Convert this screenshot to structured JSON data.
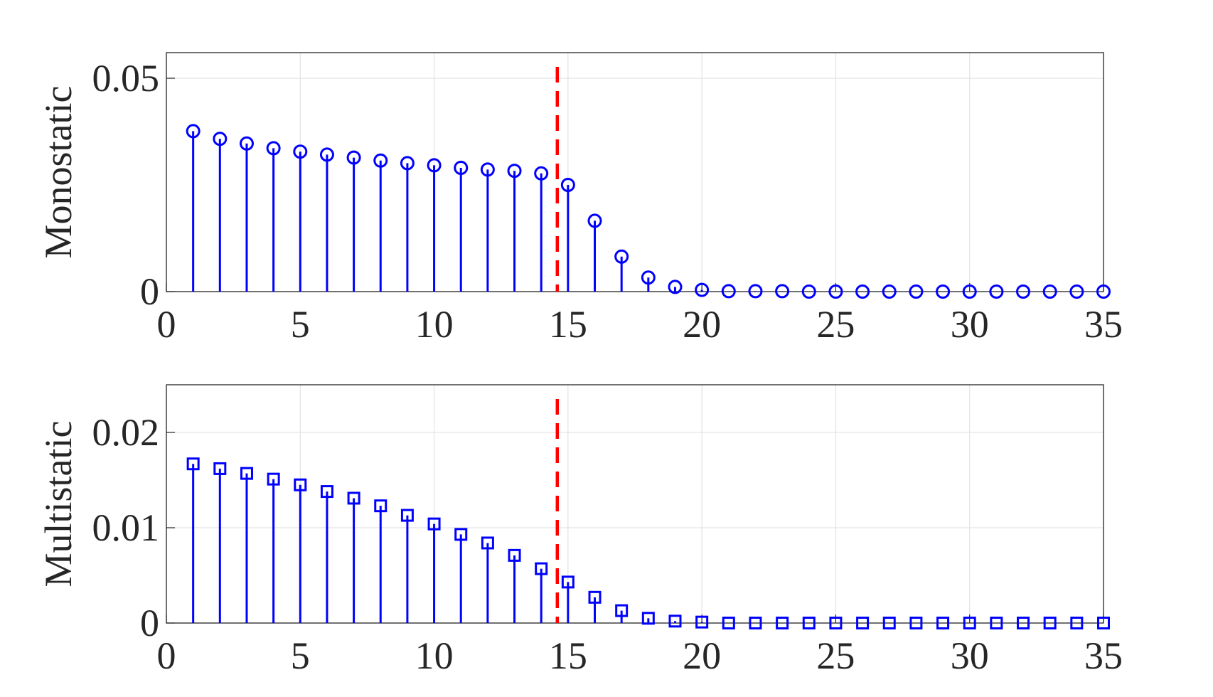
{
  "chart_data": [
    {
      "type": "stem",
      "ylabel": "Monostatic",
      "marker": "circle",
      "color": "#0000ff",
      "grid": true,
      "x": [
        1,
        2,
        3,
        4,
        5,
        6,
        7,
        8,
        9,
        10,
        11,
        12,
        13,
        14,
        15,
        16,
        17,
        18,
        19,
        20,
        21,
        22,
        23,
        24,
        25,
        26,
        27,
        28,
        29,
        30,
        31,
        32,
        33,
        34,
        35
      ],
      "values": [
        0.0376,
        0.0358,
        0.0347,
        0.0336,
        0.0328,
        0.0321,
        0.0314,
        0.0307,
        0.0301,
        0.0296,
        0.029,
        0.0286,
        0.0283,
        0.0277,
        0.025,
        0.0166,
        0.0082,
        0.0033,
        0.0011,
        0.0004,
        0.0001,
        0.0001,
        0.0001,
        0,
        0,
        0,
        0,
        0,
        0,
        0,
        0,
        0,
        0,
        0,
        0
      ],
      "xlim": [
        0,
        35
      ],
      "xticks": [
        0,
        5,
        10,
        15,
        20,
        25,
        30,
        35
      ],
      "ylim": [
        0,
        0.056
      ],
      "yticks": [
        0,
        0.05
      ],
      "vline": {
        "x": 14.6,
        "color": "#ff0000"
      }
    },
    {
      "type": "stem",
      "ylabel": "Multistatic",
      "marker": "square",
      "color": "#0000ff",
      "grid": true,
      "x": [
        1,
        2,
        3,
        4,
        5,
        6,
        7,
        8,
        9,
        10,
        11,
        12,
        13,
        14,
        15,
        16,
        17,
        18,
        19,
        20,
        21,
        22,
        23,
        24,
        25,
        26,
        27,
        28,
        29,
        30,
        31,
        32,
        33,
        34,
        35
      ],
      "values": [
        0.0167,
        0.0162,
        0.0157,
        0.0151,
        0.0145,
        0.0138,
        0.0131,
        0.0123,
        0.0113,
        0.0104,
        0.0093,
        0.0084,
        0.0071,
        0.0057,
        0.0043,
        0.0027,
        0.0013,
        0.0005,
        0.0002,
        0.0001,
        0,
        0,
        0,
        0,
        0,
        0,
        0,
        0,
        0,
        0,
        0,
        0,
        0,
        0,
        0
      ],
      "xlim": [
        0,
        35
      ],
      "xticks": [
        0,
        5,
        10,
        15,
        20,
        25,
        30,
        35
      ],
      "ylim": [
        0,
        0.025
      ],
      "yticks": [
        0,
        0.01,
        0.02
      ],
      "vline": {
        "x": 14.6,
        "color": "#ff0000"
      }
    }
  ]
}
